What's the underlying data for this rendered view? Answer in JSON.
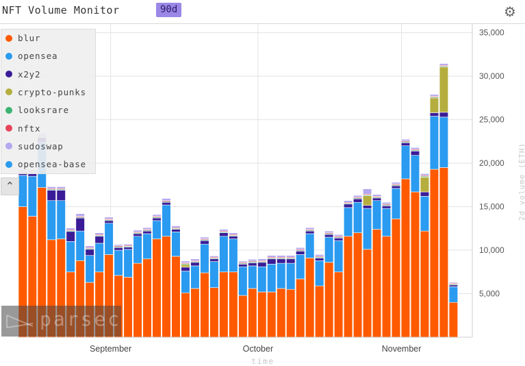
{
  "header": {
    "title": "NFT Volume Monitor",
    "range_label": "90d",
    "settings_icon": "gear-icon"
  },
  "legend": {
    "items": [
      {
        "label": "blur",
        "color": "#ff5a00"
      },
      {
        "label": "opensea",
        "color": "#2a9bf0"
      },
      {
        "label": "x2y2",
        "color": "#3a1c98"
      },
      {
        "label": "crypto-punks",
        "color": "#b5ae3e"
      },
      {
        "label": "looksrare",
        "color": "#3cb371"
      },
      {
        "label": "nftx",
        "color": "#e8455a"
      },
      {
        "label": "sudoswap",
        "color": "#b4a8f0"
      },
      {
        "label": "opensea-base",
        "color": "#2a9bf0"
      }
    ],
    "collapse_icon": "chevron-up-icon"
  },
  "watermark": {
    "text": "parsec"
  },
  "chart_data": {
    "type": "bar",
    "stacked": true,
    "xlabel": "time",
    "ylabel": "2d volume (ETH)",
    "ylim": [
      0,
      36000
    ],
    "yticks": [
      5000,
      10000,
      15000,
      20000,
      25000,
      30000,
      35000
    ],
    "ytick_labels": [
      "5,000",
      "10,000",
      "15,000",
      "20,000",
      "25,000",
      "30,000",
      "35,000"
    ],
    "x_tick_labels": [
      {
        "label": "September",
        "index": 9.7
      },
      {
        "label": "October",
        "index": 25.1
      },
      {
        "label": "November",
        "index": 40.1
      }
    ],
    "categories": [
      "1",
      "2",
      "3",
      "4",
      "5",
      "6",
      "7",
      "8",
      "9",
      "10",
      "11",
      "12",
      "13",
      "14",
      "15",
      "16",
      "17",
      "18",
      "19",
      "20",
      "21",
      "22",
      "23",
      "24",
      "25",
      "26",
      "27",
      "28",
      "29",
      "30",
      "31",
      "32",
      "33",
      "34",
      "35",
      "36",
      "37",
      "38",
      "39",
      "40",
      "41",
      "42",
      "43",
      "44",
      "45",
      "46",
      "47"
    ],
    "series": [
      {
        "name": "blur",
        "values": [
          15000,
          13900,
          17200,
          11200,
          11300,
          7500,
          8800,
          6300,
          7500,
          9500,
          7100,
          6900,
          8500,
          9000,
          11300,
          11600,
          9300,
          5100,
          5600,
          7400,
          5700,
          7500,
          7500,
          4800,
          5600,
          5200,
          5200,
          5600,
          5500,
          6700,
          9100,
          5900,
          8600,
          7500,
          11600,
          12000,
          10100,
          12400,
          11600,
          13600,
          18200,
          16700,
          12200,
          19300,
          19500,
          4000,
          0
        ]
      },
      {
        "name": "opensea",
        "values": [
          3600,
          4600,
          5200,
          4500,
          4400,
          3500,
          3400,
          3100,
          3300,
          3600,
          2900,
          3200,
          3100,
          2900,
          2100,
          3600,
          2800,
          2500,
          2600,
          3300,
          3000,
          4100,
          3800,
          3300,
          2600,
          2900,
          3200,
          2900,
          3000,
          2800,
          2800,
          2900,
          2900,
          3600,
          3300,
          3500,
          4700,
          3300,
          3200,
          3500,
          3800,
          4200,
          4000,
          6100,
          5800,
          1800,
          0
        ]
      },
      {
        "name": "x2y2",
        "values": [
          300,
          350,
          550,
          1200,
          1200,
          1150,
          1500,
          700,
          800,
          300,
          300,
          250,
          300,
          300,
          300,
          300,
          300,
          450,
          400,
          400,
          300,
          400,
          300,
          300,
          350,
          500,
          600,
          500,
          500,
          400,
          300,
          300,
          300,
          300,
          400,
          400,
          350,
          300,
          300,
          300,
          350,
          500,
          500,
          400,
          550,
          200,
          0
        ]
      },
      {
        "name": "crypto-punks",
        "values": [
          0,
          0,
          0,
          0,
          0,
          0,
          0,
          0,
          0,
          0,
          0,
          0,
          0,
          0,
          0,
          0,
          0,
          300,
          0,
          0,
          0,
          0,
          0,
          0,
          0,
          0,
          0,
          0,
          0,
          0,
          0,
          0,
          0,
          0,
          0,
          0,
          1100,
          0,
          0,
          0,
          0,
          0,
          1700,
          1700,
          5200,
          0,
          0
        ]
      },
      {
        "name": "looksrare",
        "values": [
          100,
          100,
          100,
          100,
          100,
          100,
          100,
          100,
          100,
          100,
          100,
          100,
          100,
          100,
          100,
          100,
          100,
          100,
          100,
          100,
          100,
          100,
          100,
          100,
          100,
          100,
          100,
          100,
          100,
          100,
          100,
          100,
          100,
          100,
          100,
          100,
          100,
          100,
          100,
          100,
          100,
          100,
          100,
          100,
          100,
          100,
          0
        ]
      },
      {
        "name": "nftx",
        "values": [
          100,
          100,
          100,
          100,
          100,
          100,
          100,
          100,
          100,
          100,
          100,
          100,
          100,
          100,
          100,
          100,
          100,
          100,
          100,
          100,
          100,
          100,
          100,
          100,
          100,
          100,
          100,
          100,
          100,
          100,
          100,
          100,
          100,
          100,
          100,
          100,
          100,
          100,
          100,
          100,
          100,
          100,
          100,
          100,
          100,
          100,
          0
        ]
      },
      {
        "name": "sudoswap",
        "values": [
          200,
          200,
          250,
          200,
          200,
          200,
          300,
          200,
          200,
          200,
          150,
          150,
          200,
          200,
          200,
          250,
          200,
          200,
          200,
          200,
          150,
          200,
          200,
          150,
          200,
          200,
          200,
          200,
          200,
          200,
          200,
          200,
          200,
          200,
          200,
          200,
          600,
          200,
          200,
          200,
          200,
          200,
          200,
          200,
          200,
          100,
          0
        ]
      },
      {
        "name": "opensea-base",
        "values": [
          0,
          0,
          0,
          0,
          0,
          0,
          0,
          0,
          0,
          0,
          0,
          0,
          0,
          0,
          0,
          0,
          0,
          0,
          0,
          0,
          0,
          0,
          0,
          0,
          0,
          0,
          0,
          0,
          0,
          0,
          0,
          0,
          0,
          0,
          0,
          0,
          0,
          0,
          0,
          0,
          0,
          0,
          0,
          0,
          0,
          0,
          0
        ]
      }
    ]
  }
}
